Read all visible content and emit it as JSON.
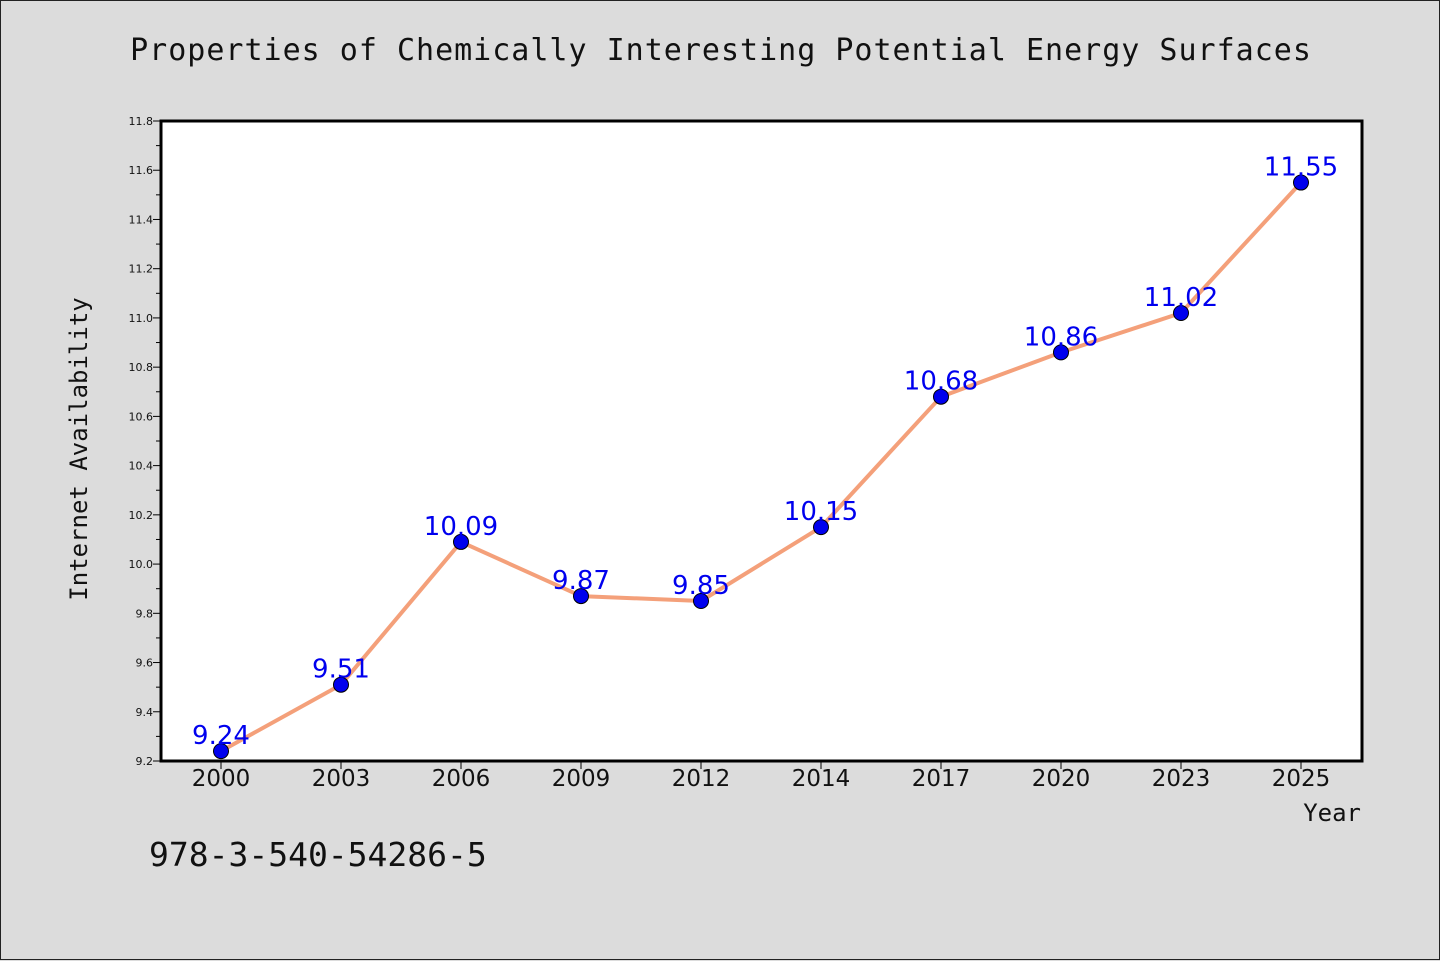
{
  "title": "Properties of Chemically Interesting Potential Energy Surfaces",
  "footer_code": "978-3-540-54286-5",
  "colors": {
    "background": "#dcdcdc",
    "plot_bg": "#ffffff",
    "line": "#f4a07a",
    "marker": "#0000ee",
    "label": "#0000ee"
  },
  "chart_data": {
    "type": "line",
    "title": "Properties of Chemically Interesting Potential Energy Surfaces",
    "xlabel": "Year",
    "ylabel": "Internet Availability",
    "x": [
      "2000",
      "2003",
      "2006",
      "2009",
      "2012",
      "2014",
      "2017",
      "2020",
      "2023",
      "2025"
    ],
    "values": [
      9.24,
      9.51,
      10.09,
      9.87,
      9.85,
      10.15,
      10.68,
      10.86,
      11.02,
      11.55
    ],
    "ylim": [
      9.2,
      11.8
    ],
    "yticks": [
      "9.2",
      "9.4",
      "9.6",
      "9.8",
      "10.0",
      "10.2",
      "10.4",
      "10.6",
      "10.8",
      "11.0",
      "11.2",
      "11.4",
      "11.6",
      "11.8"
    ],
    "grid": false,
    "legend": "none",
    "data_labels": true
  }
}
